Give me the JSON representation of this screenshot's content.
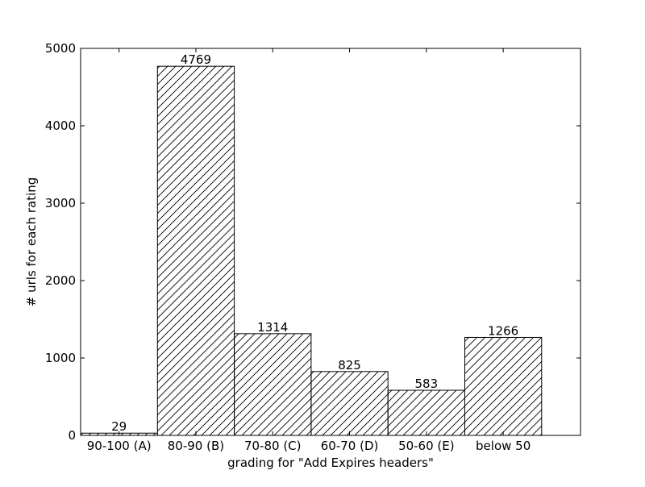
{
  "chart_data": {
    "type": "bar",
    "title": "",
    "categories": [
      "90-100 (A)",
      "80-90 (B)",
      "70-80 (C)",
      "60-70 (D)",
      "50-60 (E)",
      "below 50"
    ],
    "values": [
      29,
      4769,
      1314,
      825,
      583,
      1266
    ],
    "data_labels": [
      "29",
      "4769",
      "1314",
      "825",
      "583",
      "1266"
    ],
    "xlabel": "grading for \"Add Expires headers\"",
    "ylabel": "# urls for each rating",
    "ylim": [
      0,
      5000
    ],
    "yticks": [
      0,
      1000,
      2000,
      3000,
      4000,
      5000
    ],
    "ytick_labels": [
      "0",
      "1000",
      "2000",
      "3000",
      "4000",
      "5000"
    ],
    "grid": false,
    "legend": "none",
    "bar_fill": "#ffffff",
    "bar_edge": "#000000",
    "hatch": "diagonal"
  }
}
